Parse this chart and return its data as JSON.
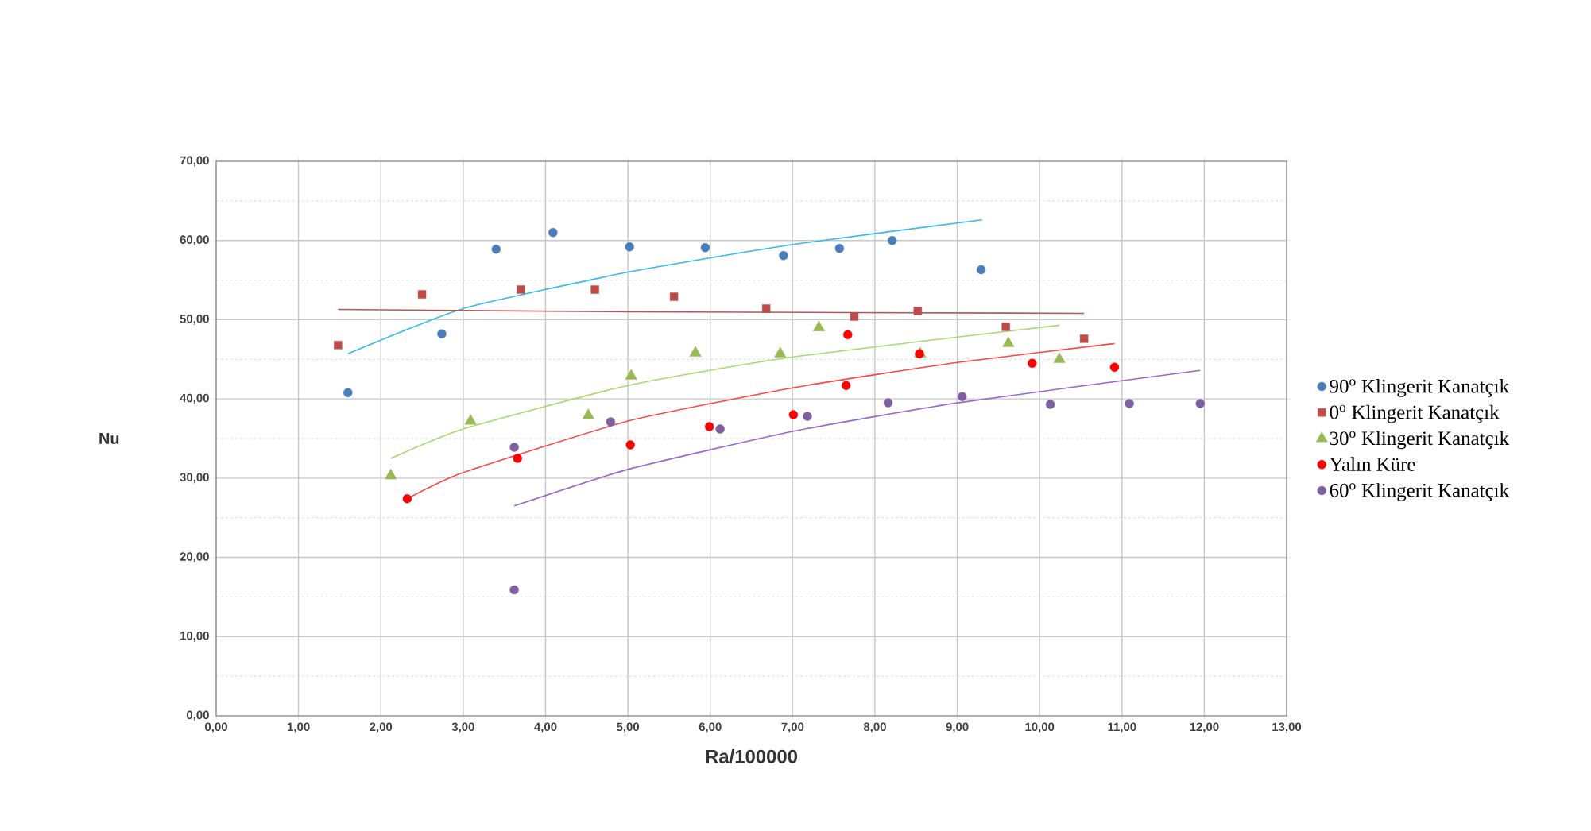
{
  "chart_data": {
    "type": "scatter",
    "xlabel": "Ra/100000",
    "ylabel": "Nu",
    "xlim": [
      0,
      13
    ],
    "ylim": [
      0,
      70
    ],
    "xticks": [
      {
        "value": 0,
        "label": "0,00"
      },
      {
        "value": 1,
        "label": "1,00"
      },
      {
        "value": 2,
        "label": "2,00"
      },
      {
        "value": 3,
        "label": "3,00"
      },
      {
        "value": 4,
        "label": "4,00"
      },
      {
        "value": 5,
        "label": "5,00"
      },
      {
        "value": 6,
        "label": "6,00"
      },
      {
        "value": 7,
        "label": "7,00"
      },
      {
        "value": 8,
        "label": "8,00"
      },
      {
        "value": 9,
        "label": "9,00"
      },
      {
        "value": 10,
        "label": "10,00"
      },
      {
        "value": 11,
        "label": "11,00"
      },
      {
        "value": 12,
        "label": "12,00"
      },
      {
        "value": 13,
        "label": "13,00"
      }
    ],
    "yticks": [
      {
        "value": 0,
        "label": "0,00"
      },
      {
        "value": 10,
        "label": "10,00"
      },
      {
        "value": 20,
        "label": "20,00"
      },
      {
        "value": 30,
        "label": "30,00"
      },
      {
        "value": 40,
        "label": "40,00"
      },
      {
        "value": 50,
        "label": "50,00"
      },
      {
        "value": 60,
        "label": "60,00"
      },
      {
        "value": 70,
        "label": "70,00"
      }
    ],
    "grid": true,
    "legend": "right",
    "series": [
      {
        "name": "90$^{o}$ Klingerit Kanatçık",
        "color": "#4a7ebb",
        "marker": "circle",
        "x": [
          1.6,
          2.74,
          3.4,
          4.09,
          5.02,
          5.94,
          6.89,
          7.57,
          8.21,
          9.29
        ],
        "values": [
          40.8,
          48.2,
          58.9,
          61.0,
          59.2,
          59.1,
          58.1,
          59.0,
          60.0,
          56.3
        ]
      },
      {
        "name": "0$^{o}$  Klingerit Kanatçık",
        "color": "#be4b48",
        "marker": "square",
        "x": [
          1.48,
          2.5,
          3.7,
          4.6,
          5.56,
          6.68,
          7.75,
          8.52,
          9.59,
          10.54
        ],
        "values": [
          46.8,
          53.2,
          53.8,
          53.8,
          52.9,
          51.4,
          50.4,
          51.1,
          49.1,
          47.6
        ]
      },
      {
        "name": "30$^{o}$ Klingerit Kanatçık",
        "color": "#98b954",
        "marker": "triangle",
        "x": [
          2.12,
          3.09,
          4.52,
          5.04,
          5.82,
          6.85,
          7.32,
          8.55,
          9.62,
          10.24
        ],
        "values": [
          30.3,
          37.2,
          37.9,
          42.9,
          45.8,
          45.7,
          49.0,
          45.7,
          47.0,
          45.0
        ]
      },
      {
        "name": "Yalın Küre",
        "color": "#ff0000",
        "marker": "circle",
        "x": [
          2.32,
          3.66,
          5.03,
          5.99,
          7.01,
          7.65,
          7.67,
          8.54,
          9.91,
          10.91
        ],
        "values": [
          27.4,
          32.5,
          34.2,
          36.5,
          38.0,
          41.7,
          48.1,
          45.7,
          44.5,
          44.0
        ]
      },
      {
        "name": "60$^{o}$ Klingerit Kanatçık",
        "color": "#7d60a0",
        "marker": "circle",
        "x": [
          3.62,
          3.62,
          4.79,
          6.12,
          7.18,
          8.16,
          9.06,
          10.13,
          11.09,
          11.95
        ],
        "values": [
          15.9,
          33.9,
          37.1,
          36.2,
          37.8,
          39.5,
          40.3,
          39.3,
          39.4,
          39.4
        ]
      },
      {
        "type": "line",
        "color": "#33bbee",
        "marker": "none",
        "x": [
          1.6,
          3.0,
          5.0,
          7.0,
          9.3
        ],
        "values": [
          45.7,
          51.4,
          56.0,
          59.5,
          62.6
        ]
      },
      {
        "type": "line",
        "color": "#b05a5a",
        "marker": "none",
        "x": [
          1.48,
          5.0,
          10.54
        ],
        "values": [
          51.3,
          51.0,
          50.8
        ]
      },
      {
        "type": "line",
        "color": "#a8d870",
        "marker": "none",
        "x": [
          2.12,
          3.0,
          5.0,
          7.0,
          10.24
        ],
        "values": [
          32.5,
          36.2,
          41.7,
          45.3,
          49.3
        ]
      },
      {
        "type": "line",
        "color": "#ff4444",
        "marker": "none",
        "x": [
          2.32,
          3.0,
          5.0,
          7.0,
          9.0,
          10.91
        ],
        "values": [
          27.4,
          30.7,
          37.2,
          41.4,
          44.6,
          47.0
        ]
      },
      {
        "type": "line",
        "color": "#9966cc",
        "marker": "none",
        "x": [
          3.62,
          5.0,
          7.0,
          9.0,
          11.95
        ],
        "values": [
          26.5,
          31.1,
          35.9,
          39.5,
          43.6
        ]
      }
    ]
  }
}
